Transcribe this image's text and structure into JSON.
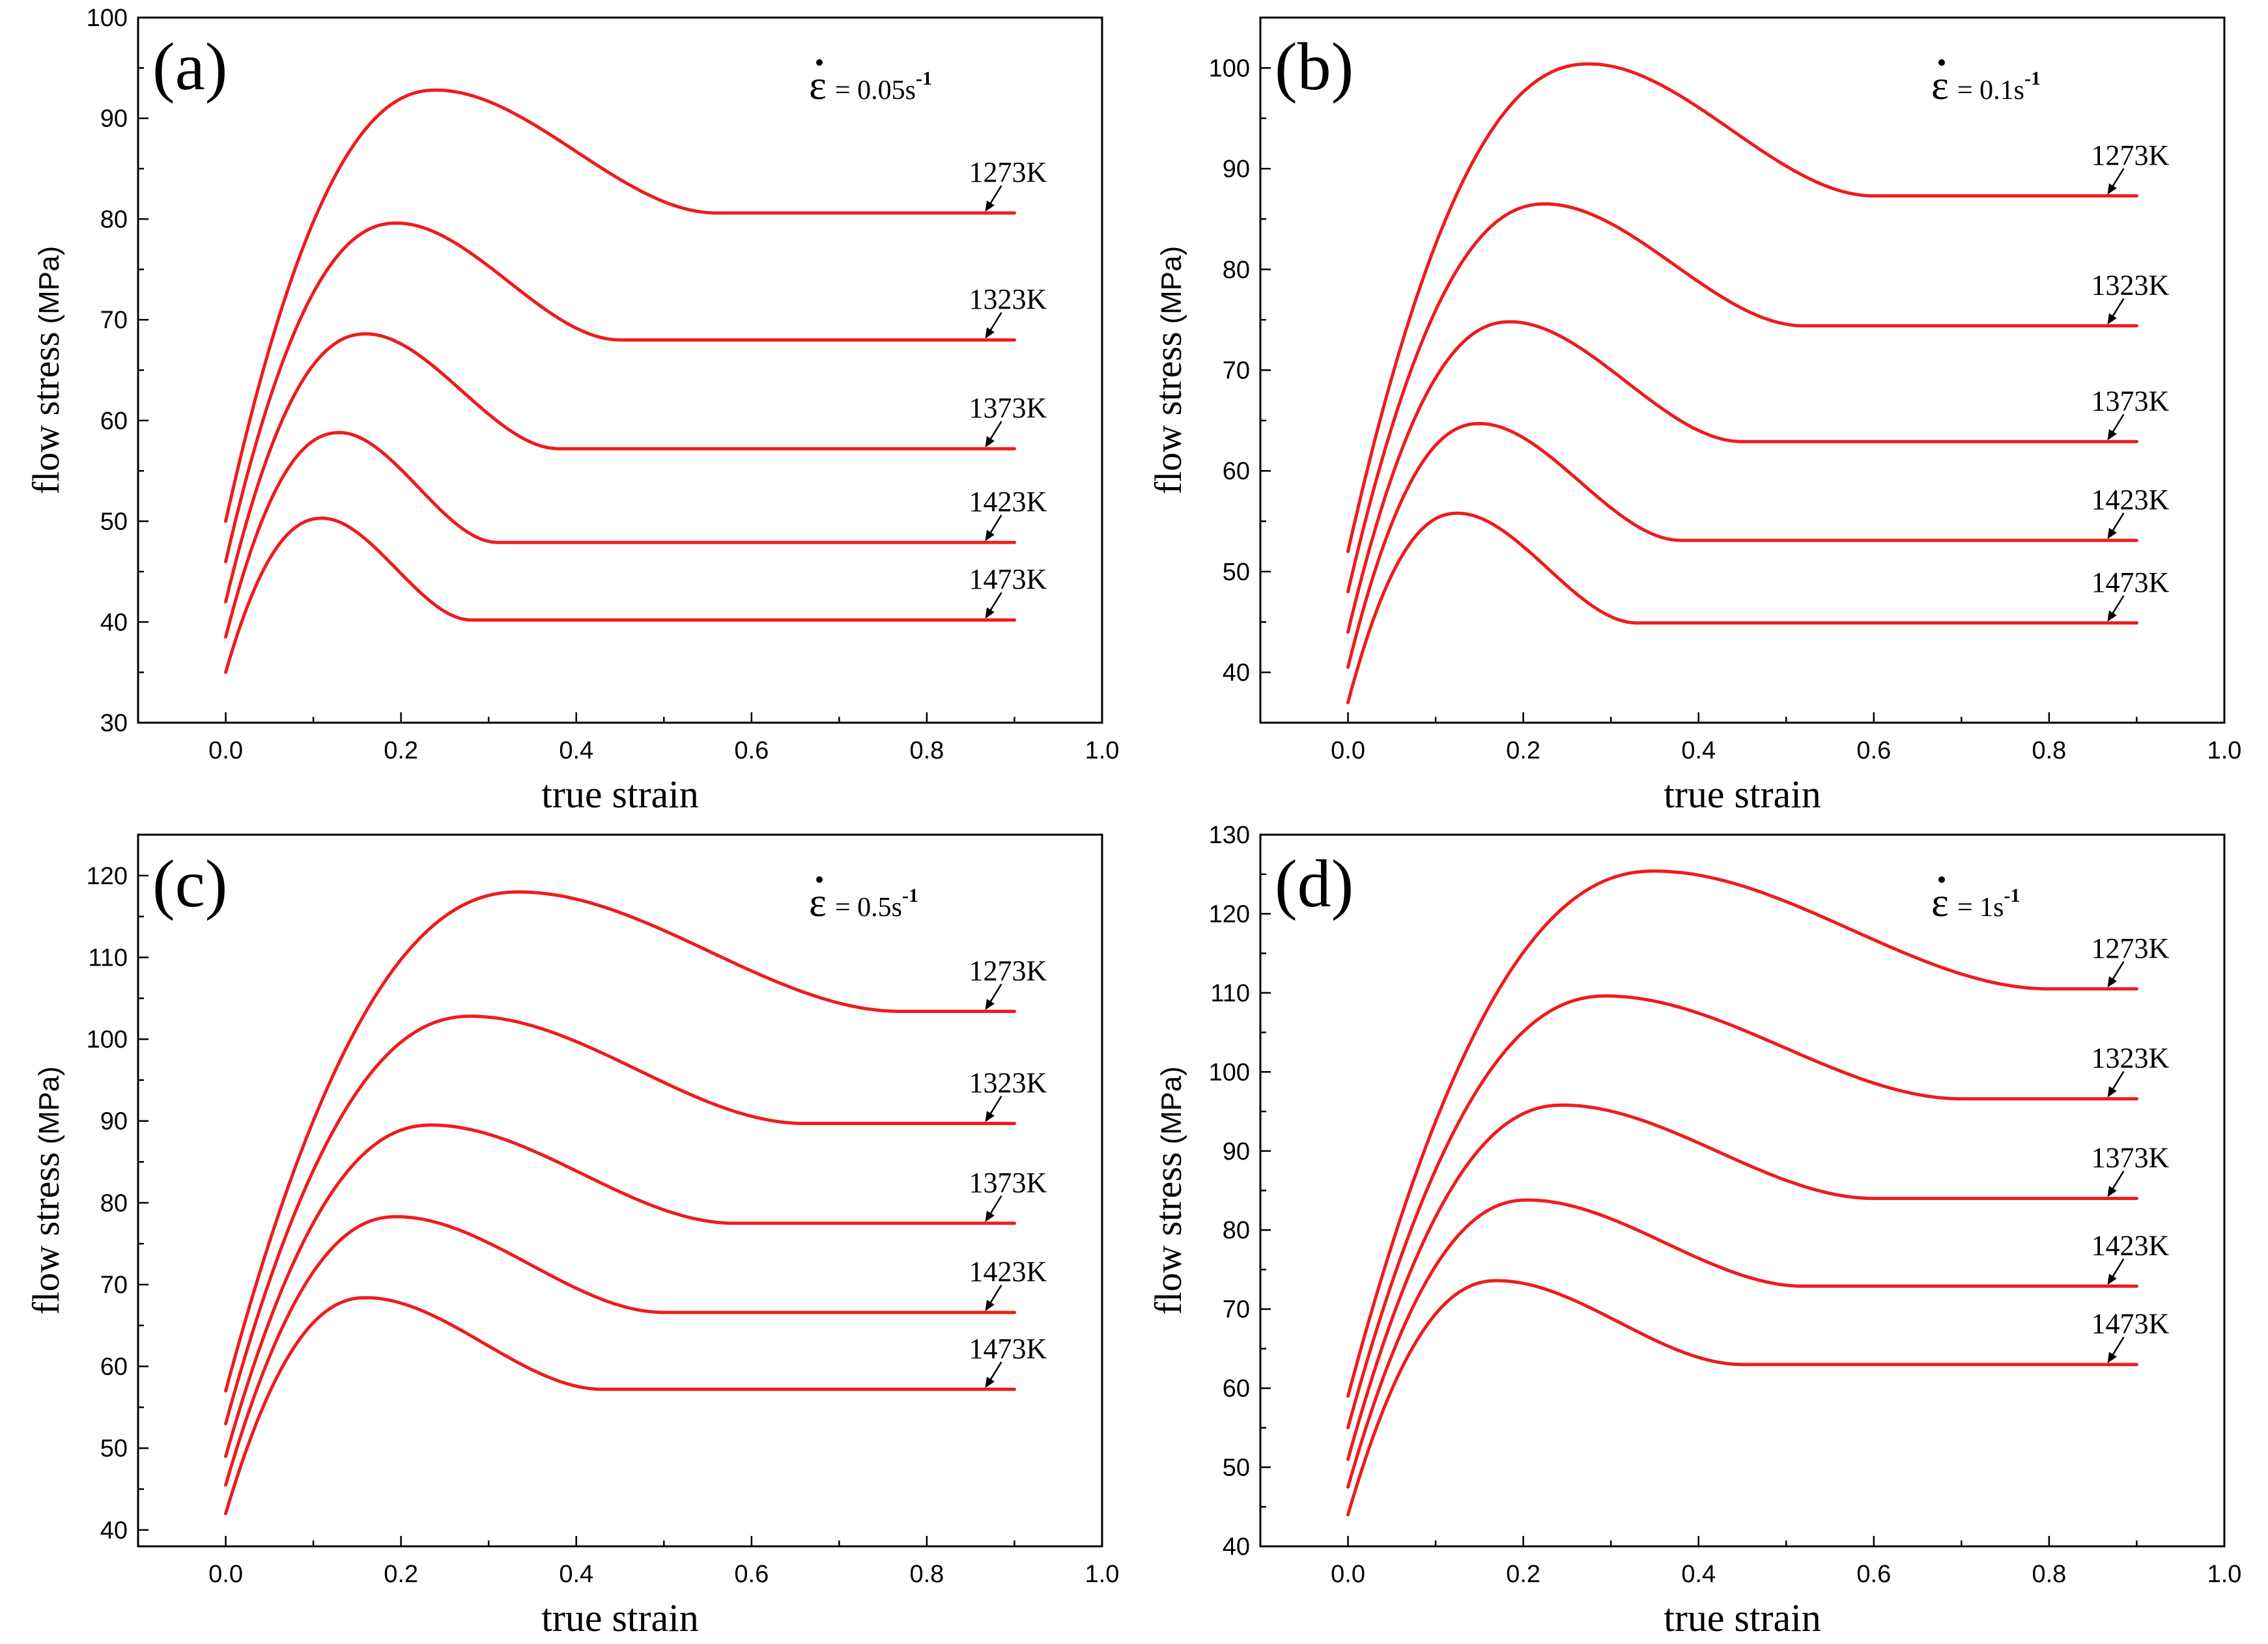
{
  "colors": {
    "series": "#ee1c1c",
    "axis": "#000000",
    "background": "#ffffff"
  },
  "chart_data": [
    {
      "type": "line",
      "panel": "(a)",
      "strain_rate_label": "= 0.05s",
      "strain_rate_exp": "-1",
      "xlabel": "true strain",
      "ylabel": "flow stress",
      "ylabel_unit": "(MPa)",
      "xlim": [
        -0.1,
        1.0
      ],
      "ylim": [
        30,
        100
      ],
      "xticks": [
        0.0,
        0.2,
        0.4,
        0.6,
        0.8,
        1.0
      ],
      "xtick_labels": [
        "0.0",
        "0.2",
        "0.4",
        "0.6",
        "0.8",
        "1.0"
      ],
      "yticks": [
        30,
        40,
        50,
        60,
        70,
        80,
        90,
        100
      ],
      "ytick_labels": [
        "30",
        "40",
        "50",
        "60",
        "70",
        "80",
        "90",
        "100"
      ],
      "series": [
        {
          "name": "1273K",
          "start": 50.0,
          "peak": [
            0.24,
            92.8
          ],
          "steady": 80.6,
          "decay_end": 0.56
        },
        {
          "name": "1323K",
          "start": 46.0,
          "peak": [
            0.195,
            79.6
          ],
          "steady": 68.0,
          "decay_end": 0.45
        },
        {
          "name": "1373K",
          "start": 42.0,
          "peak": [
            0.16,
            68.6
          ],
          "steady": 57.2,
          "decay_end": 0.38
        },
        {
          "name": "1423K",
          "start": 38.5,
          "peak": [
            0.13,
            58.8
          ],
          "steady": 47.9,
          "decay_end": 0.31
        },
        {
          "name": "1473K",
          "start": 35.0,
          "peak": [
            0.11,
            50.3
          ],
          "steady": 40.2,
          "decay_end": 0.28
        }
      ],
      "x_end": 0.9
    },
    {
      "type": "line",
      "panel": "(b)",
      "strain_rate_label": "= 0.1s",
      "strain_rate_exp": "-1",
      "xlabel": "true strain",
      "ylabel": "flow stress",
      "ylabel_unit": "(MPa)",
      "xlim": [
        -0.1,
        1.0
      ],
      "ylim": [
        35,
        105
      ],
      "xticks": [
        0.0,
        0.2,
        0.4,
        0.6,
        0.8,
        1.0
      ],
      "xtick_labels": [
        "0.0",
        "0.2",
        "0.4",
        "0.6",
        "0.8",
        "1.0"
      ],
      "yticks": [
        40,
        50,
        60,
        70,
        80,
        90,
        100
      ],
      "ytick_labels": [
        "40",
        "50",
        "60",
        "70",
        "80",
        "90",
        "100"
      ],
      "series": [
        {
          "name": "1273K",
          "start": 52.0,
          "peak": [
            0.275,
            100.4
          ],
          "steady": 87.3,
          "decay_end": 0.6
        },
        {
          "name": "1323K",
          "start": 48.0,
          "peak": [
            0.225,
            86.5
          ],
          "steady": 74.4,
          "decay_end": 0.52
        },
        {
          "name": "1373K",
          "start": 44.0,
          "peak": [
            0.185,
            74.8
          ],
          "steady": 62.9,
          "decay_end": 0.45
        },
        {
          "name": "1423K",
          "start": 40.5,
          "peak": [
            0.15,
            64.7
          ],
          "steady": 53.1,
          "decay_end": 0.38
        },
        {
          "name": "1473K",
          "start": 37.0,
          "peak": [
            0.125,
            55.8
          ],
          "steady": 44.9,
          "decay_end": 0.33
        }
      ],
      "x_end": 0.9
    },
    {
      "type": "line",
      "panel": "(c)",
      "strain_rate_label": "= 0.5s",
      "strain_rate_exp": "-1",
      "xlabel": "true strain",
      "ylabel": "flow stress",
      "ylabel_unit": "(MPa)",
      "xlim": [
        -0.1,
        1.0
      ],
      "ylim": [
        38,
        125
      ],
      "xticks": [
        0.0,
        0.2,
        0.4,
        0.6,
        0.8,
        1.0
      ],
      "xtick_labels": [
        "0.0",
        "0.2",
        "0.4",
        "0.6",
        "0.8",
        "1.0"
      ],
      "yticks": [
        40,
        50,
        60,
        70,
        80,
        90,
        100,
        110,
        120
      ],
      "ytick_labels": [
        "40",
        "50",
        "60",
        "70",
        "80",
        "90",
        "100",
        "110",
        "120"
      ],
      "series": [
        {
          "name": "1273K",
          "start": 57.0,
          "peak": [
            0.335,
            118.0
          ],
          "steady": 103.4,
          "decay_end": 0.77
        },
        {
          "name": "1323K",
          "start": 53.0,
          "peak": [
            0.28,
            102.8
          ],
          "steady": 89.7,
          "decay_end": 0.66
        },
        {
          "name": "1373K",
          "start": 49.0,
          "peak": [
            0.235,
            89.5
          ],
          "steady": 77.5,
          "decay_end": 0.58
        },
        {
          "name": "1423K",
          "start": 45.5,
          "peak": [
            0.195,
            78.3
          ],
          "steady": 66.6,
          "decay_end": 0.5
        },
        {
          "name": "1473K",
          "start": 42.0,
          "peak": [
            0.16,
            68.4
          ],
          "steady": 57.2,
          "decay_end": 0.43
        }
      ],
      "x_end": 0.9
    },
    {
      "type": "line",
      "panel": "(d)",
      "strain_rate_label": "= 1s",
      "strain_rate_exp": "-1",
      "xlabel": "true strain",
      "ylabel": "flow stress",
      "ylabel_unit": "(MPa)",
      "xlim": [
        -0.1,
        1.0
      ],
      "ylim": [
        40,
        130
      ],
      "xticks": [
        0.0,
        0.2,
        0.4,
        0.6,
        0.8,
        1.0
      ],
      "xtick_labels": [
        "0.0",
        "0.2",
        "0.4",
        "0.6",
        "0.8",
        "1.0"
      ],
      "yticks": [
        40,
        50,
        60,
        70,
        80,
        90,
        100,
        110,
        120,
        130
      ],
      "ytick_labels": [
        "40",
        "50",
        "60",
        "70",
        "80",
        "90",
        "100",
        "110",
        "120",
        "130"
      ],
      "series": [
        {
          "name": "1273K",
          "start": 59.0,
          "peak": [
            0.35,
            125.4
          ],
          "steady": 110.5,
          "decay_end": 0.8
        },
        {
          "name": "1323K",
          "start": 55.0,
          "peak": [
            0.295,
            109.6
          ],
          "steady": 96.6,
          "decay_end": 0.7
        },
        {
          "name": "1373K",
          "start": 51.0,
          "peak": [
            0.245,
            95.8
          ],
          "steady": 84.0,
          "decay_end": 0.6
        },
        {
          "name": "1423K",
          "start": 47.5,
          "peak": [
            0.205,
            83.8
          ],
          "steady": 72.9,
          "decay_end": 0.52
        },
        {
          "name": "1473K",
          "start": 44.0,
          "peak": [
            0.17,
            73.6
          ],
          "steady": 63.0,
          "decay_end": 0.45
        }
      ],
      "x_end": 0.9
    }
  ]
}
